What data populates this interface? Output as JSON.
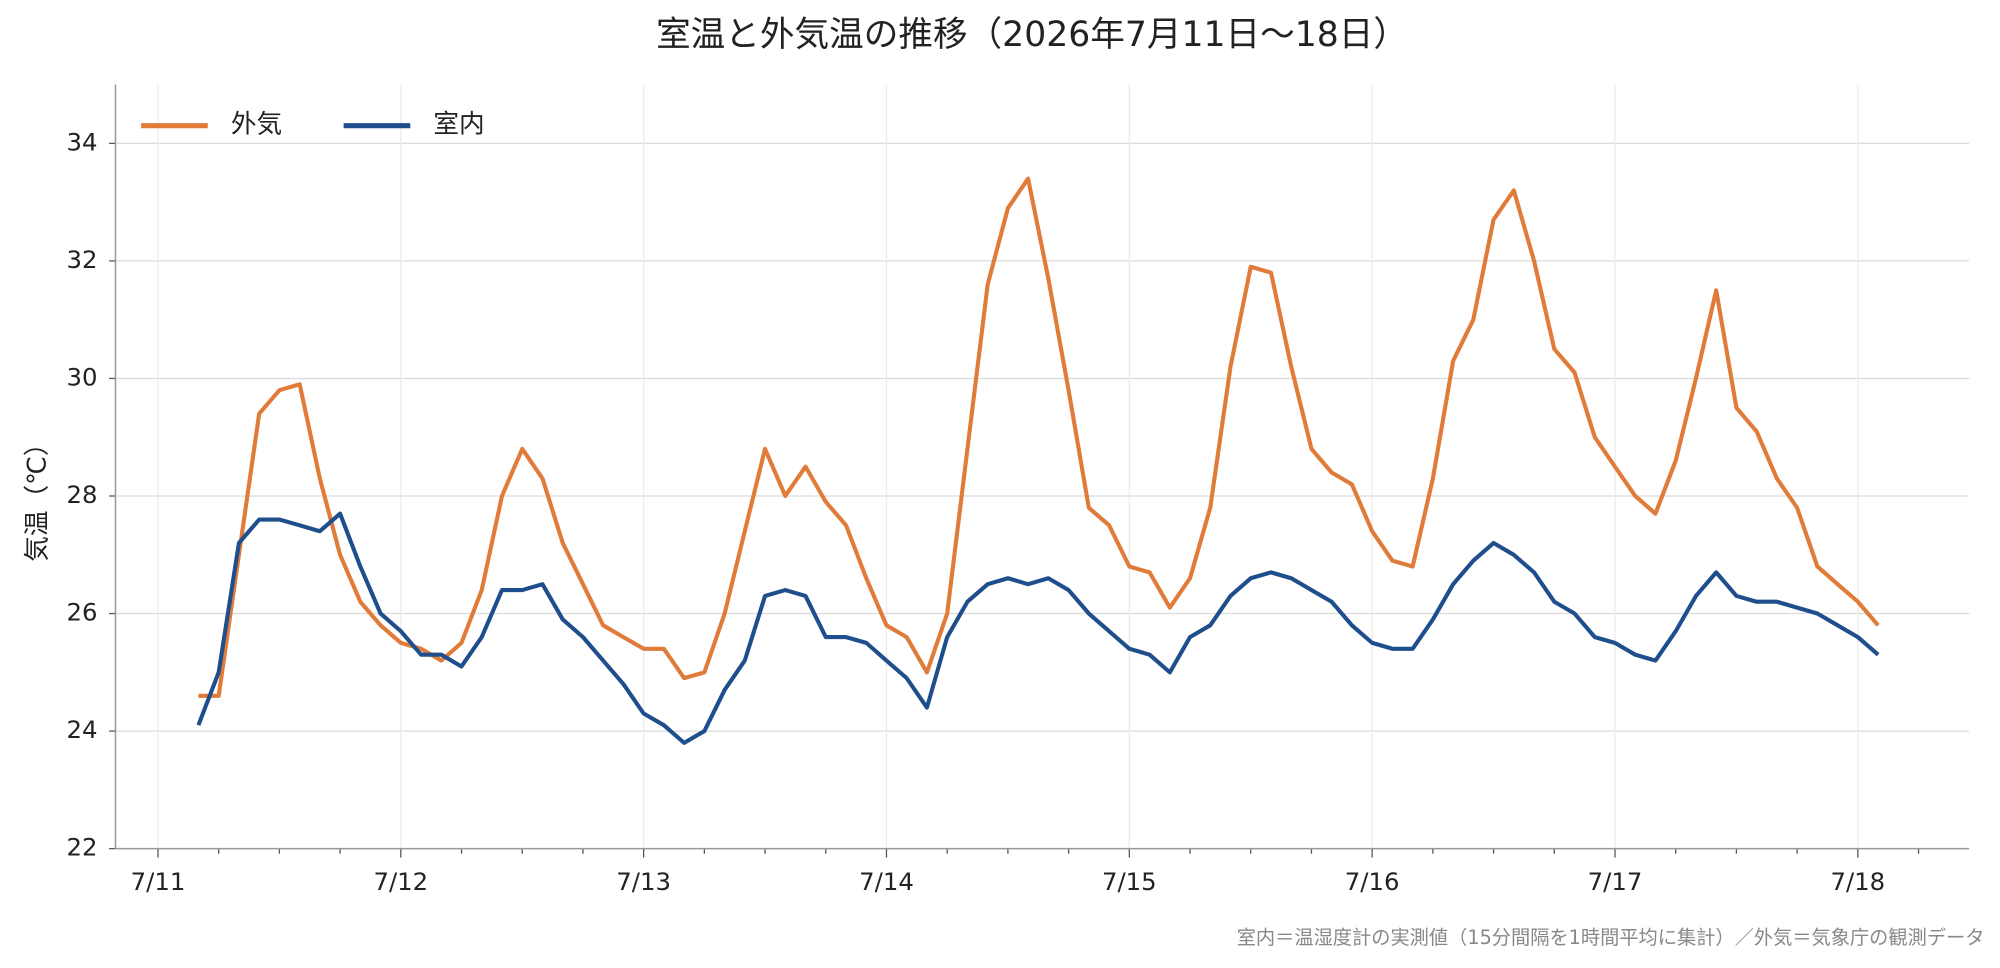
{
  "chart_data": {
    "type": "line",
    "title": "室温と外気温の推移（2026年7月11日〜18日）",
    "y_label": "気温（℃）",
    "footnote": "室内＝温湿度計の実測値（15分間隔を1時間平均に集計）／外気＝気象庁の観測データ",
    "x": [
      4,
      6,
      8,
      10,
      12,
      14,
      16,
      18,
      20,
      22,
      24,
      26,
      28,
      30,
      32,
      34,
      36,
      38,
      40,
      42,
      44,
      46,
      48,
      50,
      52,
      54,
      56,
      58,
      60,
      62,
      64,
      66,
      68,
      70,
      72,
      74,
      76,
      78,
      80,
      82,
      84,
      86,
      88,
      90,
      92,
      94,
      96,
      98,
      100,
      102,
      104,
      106,
      108,
      110,
      112,
      114,
      116,
      118,
      120,
      122,
      124,
      126,
      128,
      130,
      132,
      134,
      136,
      138,
      140,
      142,
      144,
      146,
      148,
      150,
      152,
      154,
      156,
      158,
      160,
      162,
      164,
      166,
      168,
      170
    ],
    "series": [
      {
        "name": "外気",
        "color": "#e07b39",
        "values": [
          24.6,
          24.6,
          27.0,
          29.4,
          29.8,
          29.9,
          28.3,
          27.0,
          26.2,
          25.8,
          25.5,
          25.4,
          25.2,
          25.5,
          26.4,
          28.0,
          28.8,
          28.3,
          27.2,
          26.5,
          25.8,
          25.6,
          25.4,
          25.4,
          24.9,
          25.0,
          26.0,
          27.4,
          28.8,
          28.0,
          28.5,
          27.9,
          27.5,
          26.6,
          25.8,
          25.6,
          25.0,
          26.0,
          28.8,
          31.6,
          32.9,
          33.4,
          31.7,
          29.8,
          27.8,
          27.5,
          26.8,
          26.7,
          26.1,
          26.6,
          27.8,
          30.2,
          31.9,
          31.8,
          30.2,
          28.8,
          28.4,
          28.2,
          27.4,
          26.9,
          26.8,
          28.3,
          30.3,
          31.0,
          32.7,
          33.2,
          32.0,
          30.5,
          30.1,
          29.0,
          28.5,
          28.0,
          27.7,
          28.6,
          30.0,
          31.5,
          29.5,
          29.1,
          28.3,
          27.8,
          26.8,
          26.5,
          26.2,
          25.8
        ]
      },
      {
        "name": "室内",
        "color": "#1f4e8c",
        "values": [
          24.1,
          25.0,
          27.2,
          27.6,
          27.6,
          27.5,
          27.4,
          27.7,
          26.8,
          26.0,
          25.7,
          25.3,
          25.3,
          25.1,
          25.6,
          26.4,
          26.4,
          26.5,
          25.9,
          25.6,
          25.2,
          24.8,
          24.3,
          24.1,
          23.8,
          24.0,
          24.7,
          25.2,
          26.3,
          26.4,
          26.3,
          25.6,
          25.6,
          25.5,
          25.2,
          24.9,
          24.4,
          25.6,
          26.2,
          26.5,
          26.6,
          26.5,
          26.6,
          26.4,
          26.0,
          25.7,
          25.4,
          25.3,
          25.0,
          25.6,
          25.8,
          26.3,
          26.6,
          26.7,
          26.6,
          26.4,
          26.2,
          25.8,
          25.5,
          25.4,
          25.4,
          25.9,
          26.5,
          26.9,
          27.2,
          27.0,
          26.7,
          26.2,
          26.0,
          25.6,
          25.5,
          25.3,
          25.2,
          25.7,
          26.3,
          26.7,
          26.3,
          26.2,
          26.2,
          26.1,
          26.0,
          25.8,
          25.6,
          25.3
        ]
      }
    ],
    "xlim": [
      -4.2,
      179
    ],
    "xticks": [
      {
        "value": 0,
        "label": "7/11"
      },
      {
        "value": 24,
        "label": "7/12"
      },
      {
        "value": 48,
        "label": "7/13"
      },
      {
        "value": 72,
        "label": "7/14"
      },
      {
        "value": 96,
        "label": "7/15"
      },
      {
        "value": 120,
        "label": "7/16"
      },
      {
        "value": 144,
        "label": "7/17"
      },
      {
        "value": 168,
        "label": "7/18"
      }
    ],
    "ylim": [
      22,
      35
    ],
    "yticks": [
      22,
      24,
      26,
      28,
      30,
      32,
      34
    ],
    "grid": true,
    "legend": "upper-left"
  }
}
